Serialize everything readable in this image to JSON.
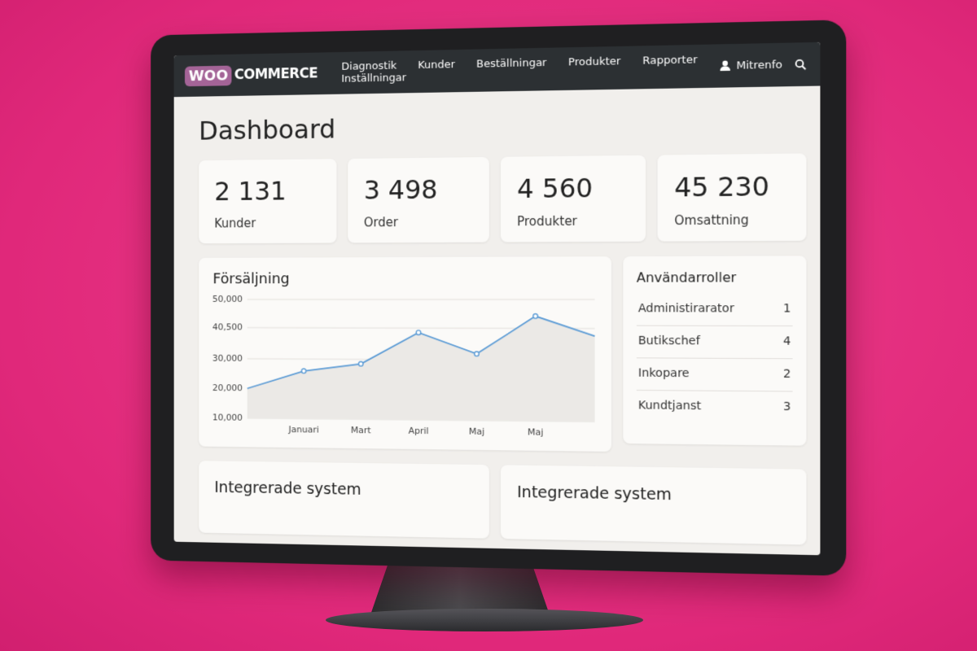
{
  "header": {
    "logo_badge": "WOO",
    "logo_text": "COMMERCE",
    "nav": [
      "Diagnostik",
      "Kunder",
      "Beställningar",
      "Produkter",
      "Rapporter",
      "Inställningar"
    ],
    "user": "Mitrenfo"
  },
  "page_title": "Dashboard",
  "stats": [
    {
      "value": "2 131",
      "label": "Kunder"
    },
    {
      "value": "3 498",
      "label": "Order"
    },
    {
      "value": "4 560",
      "label": "Produkter"
    },
    {
      "value": "45 230",
      "label": "Omsattning"
    }
  ],
  "chart_data": {
    "type": "line",
    "title": "Försäljning",
    "categories": [
      null,
      "Januari",
      "Mart",
      "April",
      "Maj",
      "Maj",
      null
    ],
    "values": [
      20000,
      26000,
      28500,
      39000,
      32000,
      44500,
      38000
    ],
    "color": "#5b9bd5",
    "grid": true,
    "ylim": [
      10000,
      50000
    ],
    "yticks": [
      {
        "value": 50000,
        "label": "50,000"
      },
      {
        "value": 40500,
        "label": "40,500"
      },
      {
        "value": 30000,
        "label": "30,000"
      },
      {
        "value": 20000,
        "label": "20,000"
      },
      {
        "value": 10000,
        "label": "10,000"
      }
    ]
  },
  "roles": {
    "title": "Användarroller",
    "rows": [
      {
        "name": "Administirarator",
        "count": 1
      },
      {
        "name": "Butikschef",
        "count": 4
      },
      {
        "name": "Inkopare",
        "count": 2
      },
      {
        "name": "Kundtjanst",
        "count": 3
      }
    ]
  },
  "integrations": [
    "Integrerade system",
    "Integrerade system"
  ]
}
